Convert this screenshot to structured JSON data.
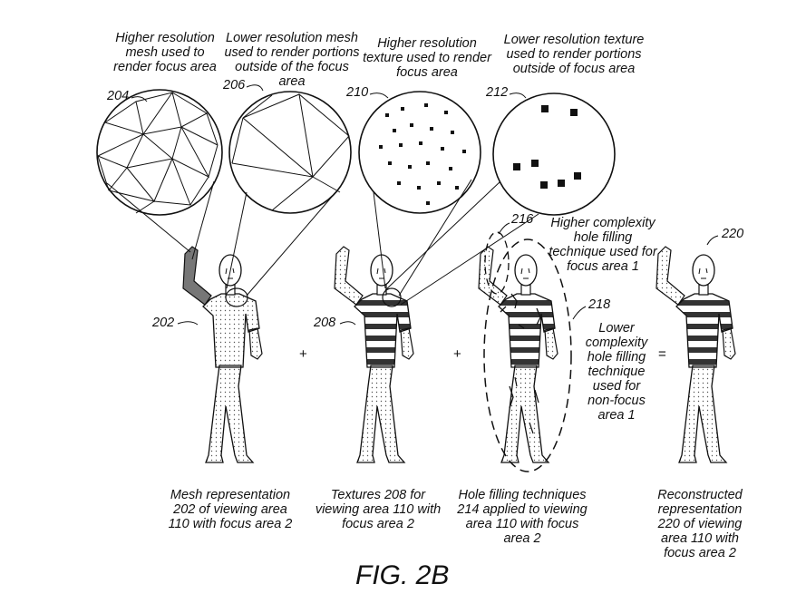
{
  "figure_label": "FIG. 2B",
  "callouts": {
    "c204": "Higher resolution\nmesh used to\nrender focus area",
    "c206": "Lower resolution mesh\nused to render portions\noutside of the focus\narea",
    "c210": "Higher resolution\ntexture used to render\nfocus area",
    "c212": "Lower resolution texture\nused to render portions\noutside of focus area",
    "c216": "Higher complexity\nhole filling\ntechnique used for\nfocus area 1",
    "c218": "Lower\ncomplexity\nhole filling\ntechnique\nused for\nnon-focus\narea 1"
  },
  "refs": {
    "r204": "204",
    "r206": "206",
    "r210": "210",
    "r212": "212",
    "r216": "216",
    "r218": "218",
    "r220": "220",
    "r202": "202",
    "r208": "208"
  },
  "operators": {
    "plus": "+",
    "equals": "="
  },
  "captions": {
    "mesh": "Mesh representation\n202 of viewing area\n110 with focus area 2",
    "textures": "Textures 208 for\nviewing area 110 with\nfocus area 2",
    "holes": "Hole filling techniques\n214 applied to viewing\narea 110 with focus\narea 2",
    "recon": "Reconstructed\nrepresentation\n220 of viewing\narea 110 with\nfocus area 2"
  }
}
